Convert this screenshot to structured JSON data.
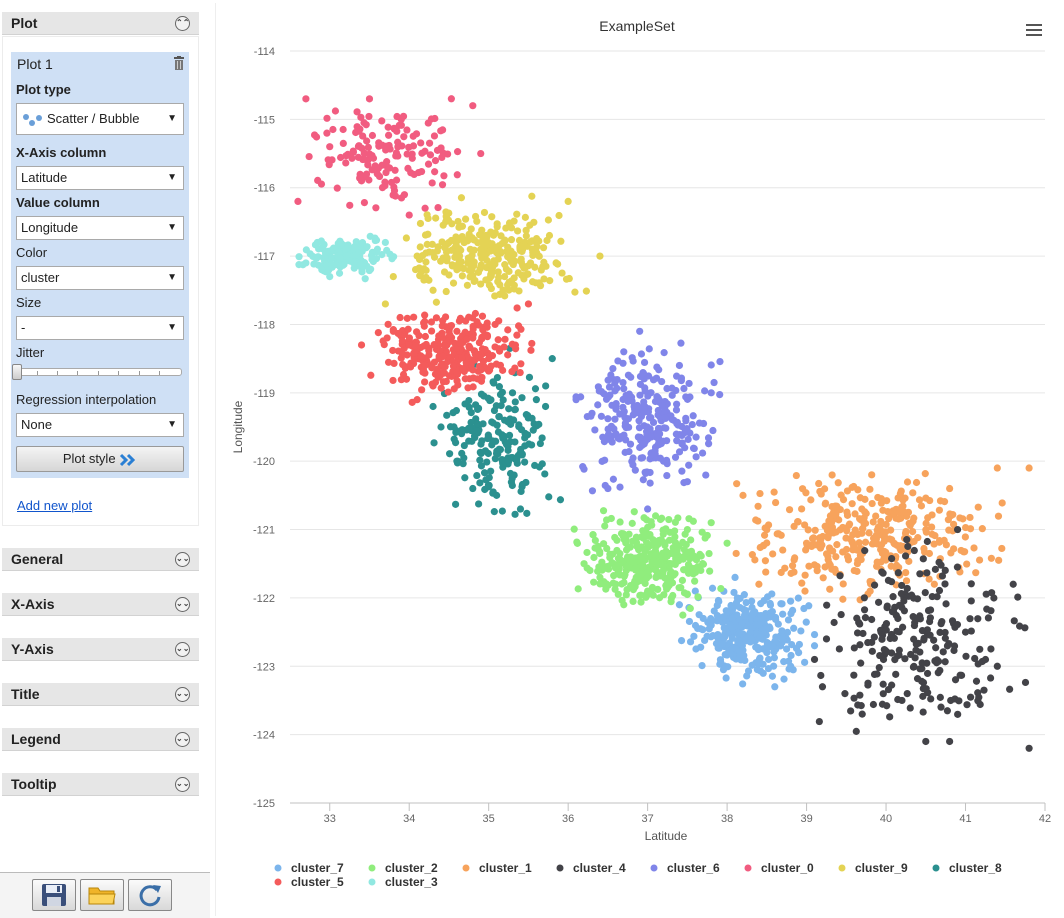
{
  "sidebar": {
    "plot_header": "Plot",
    "plot_card": {
      "title": "Plot 1",
      "plot_type_label": "Plot type",
      "plot_type_value": "Scatter / Bubble",
      "x_axis_label": "X-Axis column",
      "x_axis_value": "Latitude",
      "value_column_label": "Value column",
      "value_column_value": "Longitude",
      "color_label": "Color",
      "color_value": "cluster",
      "size_label": "Size",
      "size_value": "-",
      "jitter_label": "Jitter",
      "regression_label": "Regression interpolation",
      "regression_value": "None",
      "plot_style_button": "Plot style"
    },
    "add_new_plot": "Add new plot",
    "sections": [
      "General",
      "X-Axis",
      "Y-Axis",
      "Title",
      "Legend",
      "Tooltip"
    ]
  },
  "chart_data": {
    "type": "scatter",
    "title": "ExampleSet",
    "xlabel": "Latitude",
    "ylabel": "Longitude",
    "xlim": [
      32.5,
      42
    ],
    "ylim": [
      -125,
      -114
    ],
    "xticks": [
      33,
      34,
      35,
      36,
      37,
      38,
      39,
      40,
      41,
      42
    ],
    "yticks": [
      -114,
      -115,
      -116,
      -117,
      -118,
      -119,
      -120,
      -121,
      -122,
      -123,
      -124,
      -125
    ],
    "grid": "horizontal",
    "legend_position": "bottom",
    "series": [
      {
        "name": "cluster_7",
        "color": "#7cb5ec",
        "lat_range": [
          37.3,
          39.2
        ],
        "lon_range": [
          -123.3,
          -121.7
        ],
        "count": 300,
        "points": [
          [
            37.7,
            -122.3
          ],
          [
            37.8,
            -122.4
          ],
          [
            38.0,
            -122.2
          ],
          [
            38.3,
            -122.6
          ],
          [
            38.5,
            -122.8
          ],
          [
            38.8,
            -123.0
          ],
          [
            38.9,
            -122.8
          ],
          [
            37.4,
            -122.1
          ],
          [
            38.6,
            -123.3
          ],
          [
            39.1,
            -122.7
          ],
          [
            37.6,
            -121.9
          ],
          [
            38.1,
            -121.7
          ]
        ]
      },
      {
        "name": "cluster_2",
        "color": "#90ed7d",
        "lat_range": [
          35.9,
          38.1
        ],
        "lon_range": [
          -122.4,
          -120.6
        ],
        "count": 320,
        "points": [
          [
            36.4,
            -121.7
          ],
          [
            36.6,
            -121.8
          ],
          [
            37.0,
            -121.9
          ],
          [
            37.3,
            -122.0
          ],
          [
            36.2,
            -121.5
          ],
          [
            37.5,
            -121.0
          ],
          [
            37.8,
            -120.9
          ],
          [
            38.0,
            -121.2
          ],
          [
            37.1,
            -120.8
          ],
          [
            36.7,
            -122.1
          ]
        ]
      },
      {
        "name": "cluster_1",
        "color": "#f7a35c",
        "lat_range": [
          37.8,
          41.8
        ],
        "lon_range": [
          -122.2,
          -119.9
        ],
        "count": 340,
        "points": [
          [
            38.5,
            -121.0
          ],
          [
            38.7,
            -121.3
          ],
          [
            39.0,
            -121.2
          ],
          [
            39.3,
            -120.8
          ],
          [
            39.6,
            -121.6
          ],
          [
            40.1,
            -121.2
          ],
          [
            40.8,
            -120.4
          ],
          [
            41.4,
            -120.1
          ],
          [
            41.8,
            -120.1
          ],
          [
            38.4,
            -121.8
          ],
          [
            39.8,
            -121.9
          ],
          [
            38.2,
            -120.5
          ]
        ]
      },
      {
        "name": "cluster_4",
        "color": "#434348",
        "lat_range": [
          38.8,
          42.0
        ],
        "lon_range": [
          -124.3,
          -120.8
        ],
        "count": 230,
        "points": [
          [
            40.5,
            -124.1
          ],
          [
            40.8,
            -124.1
          ],
          [
            41.0,
            -122.5
          ],
          [
            41.8,
            -124.2
          ],
          [
            40.2,
            -123.5
          ],
          [
            39.2,
            -123.3
          ],
          [
            39.7,
            -123.7
          ],
          [
            41.4,
            -123.0
          ],
          [
            40.9,
            -121.0
          ],
          [
            41.6,
            -121.8
          ],
          [
            39.1,
            -122.9
          ],
          [
            40.4,
            -122.3
          ]
        ]
      },
      {
        "name": "cluster_6",
        "color": "#8085e9",
        "lat_range": [
          35.9,
          38.1
        ],
        "lon_range": [
          -120.7,
          -118.1
        ],
        "count": 260,
        "points": [
          [
            36.3,
            -119.3
          ],
          [
            36.6,
            -119.6
          ],
          [
            36.9,
            -119.8
          ],
          [
            37.2,
            -120.0
          ],
          [
            37.5,
            -120.3
          ],
          [
            36.1,
            -119.1
          ],
          [
            36.7,
            -118.4
          ],
          [
            37.4,
            -118.6
          ],
          [
            37.8,
            -119.0
          ],
          [
            36.5,
            -120.4
          ],
          [
            37.0,
            -120.7
          ],
          [
            36.9,
            -118.1
          ]
        ]
      },
      {
        "name": "cluster_0",
        "color": "#f15c80",
        "lat_range": [
          32.5,
          35.0
        ],
        "lon_range": [
          -116.6,
          -114.5
        ],
        "count": 140,
        "points": [
          [
            32.7,
            -114.7
          ],
          [
            33.5,
            -114.7
          ],
          [
            33.0,
            -115.4
          ],
          [
            33.4,
            -115.9
          ],
          [
            34.0,
            -116.4
          ],
          [
            32.6,
            -116.2
          ],
          [
            33.9,
            -115.0
          ],
          [
            34.8,
            -114.8
          ],
          [
            34.9,
            -115.5
          ],
          [
            34.2,
            -116.3
          ]
        ]
      },
      {
        "name": "cluster_9",
        "color": "#e4d354",
        "lat_range": [
          33.6,
          36.4
        ],
        "lon_range": [
          -117.9,
          -116.0
        ],
        "count": 280,
        "points": [
          [
            33.8,
            -117.3
          ],
          [
            34.1,
            -117.0
          ],
          [
            34.3,
            -117.5
          ],
          [
            34.6,
            -117.2
          ],
          [
            34.9,
            -116.9
          ],
          [
            35.2,
            -117.3
          ],
          [
            36.0,
            -116.2
          ],
          [
            36.4,
            -117.0
          ],
          [
            33.7,
            -117.7
          ],
          [
            34.5,
            -116.8
          ]
        ]
      },
      {
        "name": "cluster_8",
        "color": "#2b908f",
        "lat_range": [
          34.2,
          36.0
        ],
        "lon_range": [
          -121.1,
          -118.2
        ],
        "count": 190,
        "points": [
          [
            34.3,
            -119.2
          ],
          [
            34.4,
            -119.5
          ],
          [
            34.6,
            -120.0
          ],
          [
            34.8,
            -120.4
          ],
          [
            35.1,
            -120.5
          ],
          [
            35.4,
            -120.7
          ],
          [
            35.3,
            -119.0
          ],
          [
            35.8,
            -118.5
          ],
          [
            35.6,
            -119.1
          ],
          [
            35.2,
            -119.4
          ]
        ]
      },
      {
        "name": "cluster_5",
        "color": "#f45b5b",
        "lat_range": [
          33.3,
          35.7
        ],
        "lon_range": [
          -119.2,
          -117.6
        ],
        "count": 290,
        "points": [
          [
            33.8,
            -118.1
          ],
          [
            34.0,
            -118.3
          ],
          [
            34.2,
            -118.6
          ],
          [
            34.3,
            -118.9
          ],
          [
            34.6,
            -118.1
          ],
          [
            34.8,
            -118.2
          ],
          [
            35.5,
            -117.7
          ],
          [
            33.4,
            -118.3
          ],
          [
            35.0,
            -118.5
          ],
          [
            34.1,
            -119.1
          ]
        ]
      },
      {
        "name": "cluster_3",
        "color": "#91e8e1",
        "lat_range": [
          32.5,
          34.0
        ],
        "lon_range": [
          -117.4,
          -116.6
        ],
        "count": 150,
        "points": [
          [
            32.7,
            -117.1
          ],
          [
            32.9,
            -117.2
          ],
          [
            33.1,
            -117.0
          ],
          [
            33.3,
            -117.1
          ],
          [
            33.5,
            -117.2
          ],
          [
            33.7,
            -116.8
          ],
          [
            33.0,
            -117.3
          ],
          [
            33.6,
            -116.9
          ]
        ]
      }
    ]
  }
}
